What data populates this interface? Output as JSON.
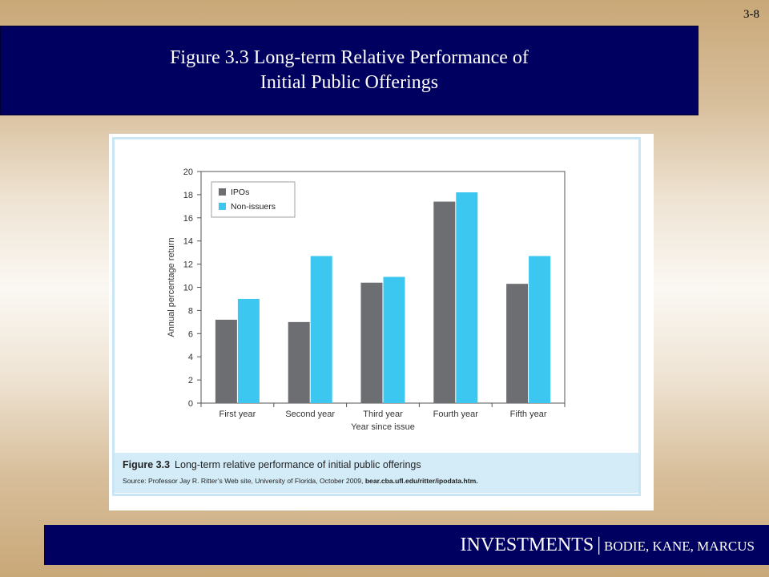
{
  "slide": {
    "number": "3-8",
    "title_line1": "Figure 3.3 Long-term Relative Performance of",
    "title_line2": "Initial Public Offerings"
  },
  "caption": {
    "label": "Figure 3.3",
    "title": "Long-term relative performance of initial public offerings",
    "source_prefix": "Source: Professor Jay R. Ritter’s Web site, University of Florida, October 2009,",
    "source_url": "bear.cba.ufl.edu/ritter/ipodata.htm."
  },
  "footer": {
    "brand": "INVESTMENTS",
    "separator": "|",
    "authors": "BODIE, KANE, MARCUS"
  },
  "chart_data": {
    "type": "bar",
    "categories": [
      "First year",
      "Second year",
      "Third year",
      "Fourth year",
      "Fifth year"
    ],
    "series": [
      {
        "name": "IPOs",
        "values": [
          7.2,
          7.0,
          10.4,
          17.4,
          10.3
        ]
      },
      {
        "name": "Non-issuers",
        "values": [
          9.0,
          12.7,
          10.9,
          18.2,
          12.7
        ]
      }
    ],
    "xlabel": "Year since issue",
    "ylabel": "Annual percentage return",
    "ylim": [
      0,
      20
    ],
    "yticks": [
      0,
      2,
      4,
      6,
      8,
      10,
      12,
      14,
      16,
      18,
      20
    ],
    "legend_position": "top-left",
    "grid": false,
    "colors": {
      "IPOs": "#6d6e71",
      "Non-issuers": "#3cc7f0"
    }
  }
}
